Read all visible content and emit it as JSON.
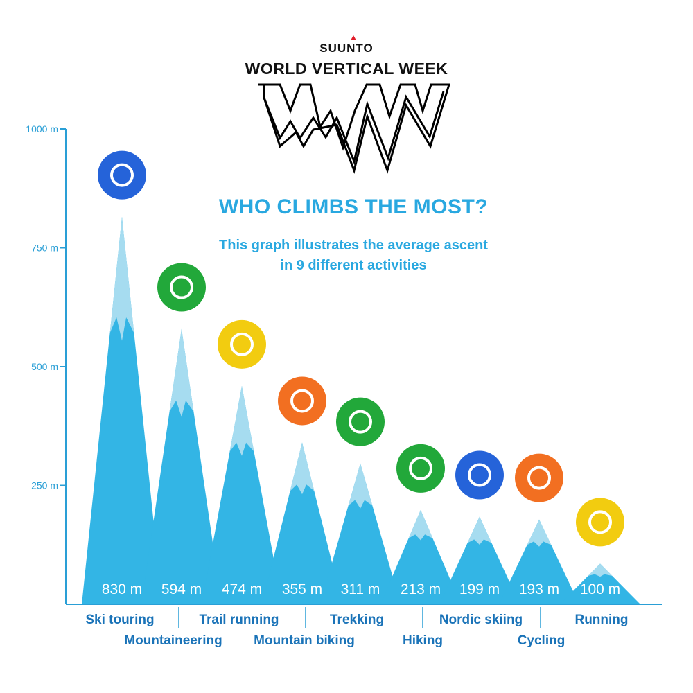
{
  "brand": {
    "suunto": "SUUNTO",
    "event": "WORLD VERTICAL WEEK"
  },
  "title": "WHO CLIMBS THE MOST?",
  "subtitle_line1": "This graph illustrates the average ascent",
  "subtitle_line2": "in 9 different activities",
  "colors": {
    "axis": "#2a9fd6",
    "mountain": "#33b5e5",
    "mountain_light": "#a6dcf0",
    "label": "#1a73b8",
    "value_text": "#ffffff",
    "title": "#29a8e0",
    "icon_blue": "#2563d9",
    "icon_green": "#22a83a",
    "icon_yellow": "#f2cc10",
    "icon_orange": "#f26f21"
  },
  "chart_data": {
    "type": "bar",
    "title": "WHO CLIMBS THE MOST?",
    "xlabel": "",
    "ylabel": "",
    "ylim": [
      0,
      1000
    ],
    "y_ticks": [
      {
        "value": 250,
        "label": "250 m"
      },
      {
        "value": 500,
        "label": "500 m"
      },
      {
        "value": 750,
        "label": "750 m"
      },
      {
        "value": 1000,
        "label": "1000 m"
      }
    ],
    "grid": false,
    "legend": "none",
    "categories": [
      "Ski touring",
      "Mountaineering",
      "Trail running",
      "Mountain biking",
      "Trekking",
      "Hiking",
      "Nordic skiing",
      "Cycling",
      "Running"
    ],
    "values": [
      830,
      594,
      474,
      355,
      311,
      213,
      199,
      193,
      100
    ],
    "value_labels": [
      "830 m",
      "594 m",
      "474 m",
      "355 m",
      "311 m",
      "213 m",
      "199 m",
      "193 m",
      "100 m"
    ],
    "icons": [
      {
        "name": "ski-touring-icon",
        "color": "icon_blue"
      },
      {
        "name": "carabiner-icon",
        "color": "icon_green"
      },
      {
        "name": "trail-shoe-icon",
        "color": "icon_yellow"
      },
      {
        "name": "mountain-bike-icon",
        "color": "icon_orange"
      },
      {
        "name": "trekking-boot-icon",
        "color": "icon_green"
      },
      {
        "name": "hiking-boot-icon",
        "color": "icon_green"
      },
      {
        "name": "nordic-skis-icon",
        "color": "icon_blue"
      },
      {
        "name": "bicycle-icon",
        "color": "icon_orange"
      },
      {
        "name": "running-shoe-icon",
        "color": "icon_yellow"
      }
    ]
  }
}
